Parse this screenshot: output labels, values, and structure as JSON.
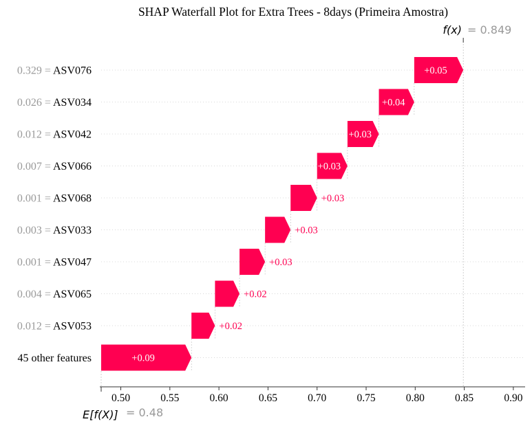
{
  "chart_data": {
    "type": "waterfall",
    "title": "SHAP Waterfall Plot for Extra Trees - 8days (Primeira Amostra)",
    "base_value": 0.48,
    "base_label": "E[f(X)]",
    "base_value_text": "= 0.48",
    "output_value": 0.849,
    "output_label": "f(x)",
    "output_value_text": "= 0.849",
    "xlim": [
      0.48,
      0.912
    ],
    "x_ticks": [
      0.5,
      0.55,
      0.6,
      0.65,
      0.7,
      0.75,
      0.8,
      0.85,
      0.9
    ],
    "x_tick_labels": [
      "0.50",
      "0.55",
      "0.60",
      "0.65",
      "0.70",
      "0.75",
      "0.80",
      "0.85",
      "0.90"
    ],
    "features": [
      {
        "value_text": "0.329 =",
        "name": "ASV076",
        "start": 0.799,
        "end": 0.849,
        "label": "+0.05"
      },
      {
        "value_text": "0.026 =",
        "name": "ASV034",
        "start": 0.763,
        "end": 0.799,
        "label": "+0.04"
      },
      {
        "value_text": "0.012 =",
        "name": "ASV042",
        "start": 0.731,
        "end": 0.763,
        "label": "+0.03"
      },
      {
        "value_text": "0.007 =",
        "name": "ASV066",
        "start": 0.7,
        "end": 0.731,
        "label": "+0.03"
      },
      {
        "value_text": "0.001 =",
        "name": "ASV068",
        "start": 0.673,
        "end": 0.7,
        "label": "+0.03"
      },
      {
        "value_text": "0.003 =",
        "name": "ASV033",
        "start": 0.647,
        "end": 0.673,
        "label": "+0.03"
      },
      {
        "value_text": "0.001 =",
        "name": "ASV047",
        "start": 0.621,
        "end": 0.647,
        "label": "+0.03"
      },
      {
        "value_text": "0.004 =",
        "name": "ASV065",
        "start": 0.596,
        "end": 0.621,
        "label": "+0.02"
      },
      {
        "value_text": "0.012 =",
        "name": "ASV053",
        "start": 0.572,
        "end": 0.596,
        "label": "+0.02"
      },
      {
        "value_text": "",
        "name": "45 other features",
        "start": 0.48,
        "end": 0.572,
        "label": "+0.09"
      }
    ],
    "colors": {
      "positive": "#ff0051",
      "feature_value_text": "#999999",
      "axis": "#333333",
      "guide_line": "#bbbbbb",
      "label_on_bar": "#ffffff"
    },
    "grid": "dotted horizontal"
  }
}
